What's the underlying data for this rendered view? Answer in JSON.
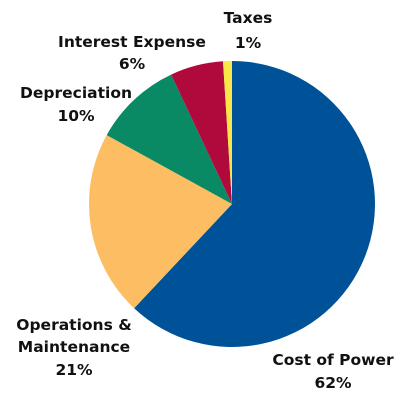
{
  "chart_data": {
    "type": "pie",
    "slices": [
      {
        "label": "Cost of Power",
        "value": 62,
        "value_label": "62%",
        "color": "#005298"
      },
      {
        "label": "Operations & Maintenance",
        "label_lines": [
          "Operations &",
          "Maintenance"
        ],
        "value": 21,
        "value_label": "21%",
        "color": "#fdbe63"
      },
      {
        "label": "Depreciation",
        "value": 10,
        "value_label": "10%",
        "color": "#0a8a64"
      },
      {
        "label": "Interest Expense",
        "value": 6,
        "value_label": "6%",
        "color": "#b00a3c"
      },
      {
        "label": "Taxes",
        "value": 1,
        "value_label": "1%",
        "color": "#fbe64a"
      }
    ]
  }
}
